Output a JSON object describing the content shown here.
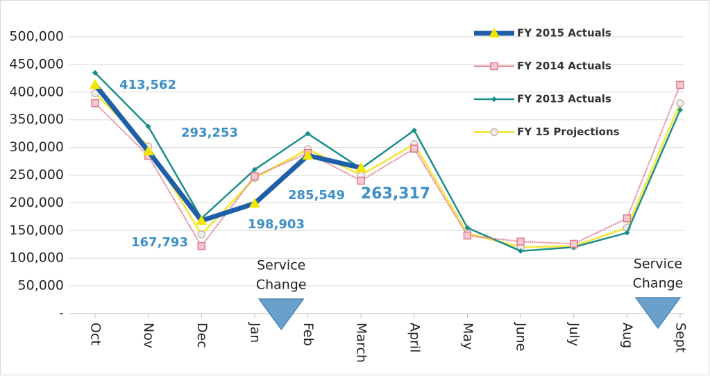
{
  "chart_data": {
    "type": "line",
    "categories": [
      "Oct",
      "Nov",
      "Dec",
      "Jan",
      "Feb",
      "March",
      "April",
      "May",
      "June",
      "July",
      "Aug",
      "Sept"
    ],
    "ylim": [
      0,
      500000
    ],
    "yticks": [
      {
        "value": 0,
        "label": "-"
      },
      {
        "value": 50000,
        "label": "50,000"
      },
      {
        "value": 100000,
        "label": "100,000"
      },
      {
        "value": 150000,
        "label": "150,000"
      },
      {
        "value": 200000,
        "label": "200,000"
      },
      {
        "value": 250000,
        "label": "250,000"
      },
      {
        "value": 300000,
        "label": "300,000"
      },
      {
        "value": 350000,
        "label": "350,000"
      },
      {
        "value": 400000,
        "label": "400,000"
      },
      {
        "value": 450000,
        "label": "450,000"
      },
      {
        "value": 500000,
        "label": "500,000"
      }
    ],
    "grid": true,
    "legend": "top-right",
    "series": [
      {
        "name": "FY 2015 Actuals",
        "color": "#1f5fa8",
        "marker": "triangle",
        "marker_color": "#f2e600",
        "values": [
          413562,
          293253,
          167793,
          198903,
          285549,
          263317,
          null,
          null,
          null,
          null,
          null,
          null
        ],
        "value_labels": [
          "413,562",
          "293,253",
          "167,793",
          "198,903",
          "285,549",
          "263,317",
          null,
          null,
          null,
          null,
          null,
          null
        ]
      },
      {
        "name": "FY 2014 Actuals",
        "color": "#e07a8c",
        "marker": "square",
        "marker_color": "#e07a8c",
        "values": [
          380000,
          285000,
          122000,
          248000,
          290000,
          240000,
          298000,
          141000,
          130000,
          126000,
          172000,
          413000
        ]
      },
      {
        "name": "FY 2013 Actuals",
        "color": "#1a8e8a",
        "marker": "diamond",
        "marker_color": "#1a8e8a",
        "values": [
          435000,
          338000,
          172000,
          260000,
          325000,
          262000,
          331000,
          155000,
          113000,
          120000,
          146000,
          368000
        ]
      },
      {
        "name": "FY 15 Projections",
        "color": "#f5e84a",
        "marker": "circle",
        "marker_color": "#c9b9b0",
        "values": [
          398000,
          302000,
          143000,
          245000,
          297000,
          250000,
          306000,
          145000,
          120000,
          122000,
          155000,
          380000
        ]
      }
    ],
    "annotations": [
      {
        "lines": [
          "Service",
          "Change"
        ]
      },
      {
        "lines": [
          "Service",
          "Change"
        ]
      }
    ]
  }
}
